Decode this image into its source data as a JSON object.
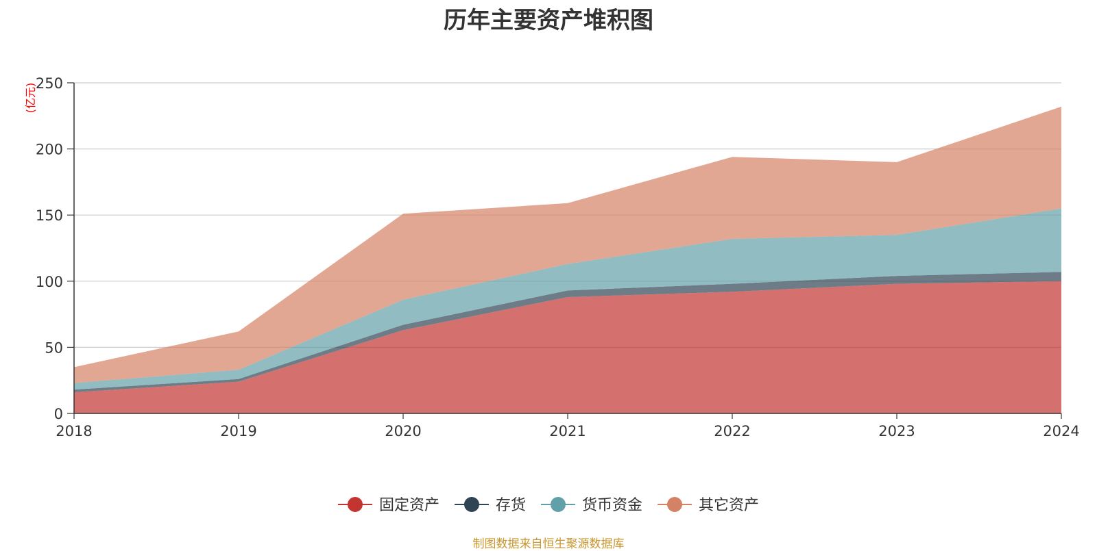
{
  "chart_data": {
    "type": "area",
    "stacked": true,
    "title": "历年主要资产堆积图",
    "unit_label": "(亿元)",
    "source": "制图数据来自恒生聚源数据库",
    "x": [
      "2018",
      "2019",
      "2020",
      "2021",
      "2022",
      "2023",
      "2024"
    ],
    "y_ticks": [
      "0",
      "50",
      "100",
      "150",
      "200",
      "250"
    ],
    "ylim": [
      0,
      250
    ],
    "grid": true,
    "legend_position": "bottom-center",
    "series": [
      {
        "name": "固定资产",
        "color": "#c23531",
        "values": [
          16,
          24,
          63,
          88,
          92,
          98,
          100
        ]
      },
      {
        "name": "存货",
        "color": "#2f4554",
        "values": [
          2,
          2,
          4,
          5,
          6,
          6,
          7
        ]
      },
      {
        "name": "货币资金",
        "color": "#61a0a8",
        "values": [
          5,
          7,
          19,
          20,
          34,
          31,
          48
        ]
      },
      {
        "name": "其它资产",
        "color": "#d48265",
        "values": [
          12,
          29,
          65,
          46,
          62,
          55,
          77
        ]
      }
    ]
  }
}
